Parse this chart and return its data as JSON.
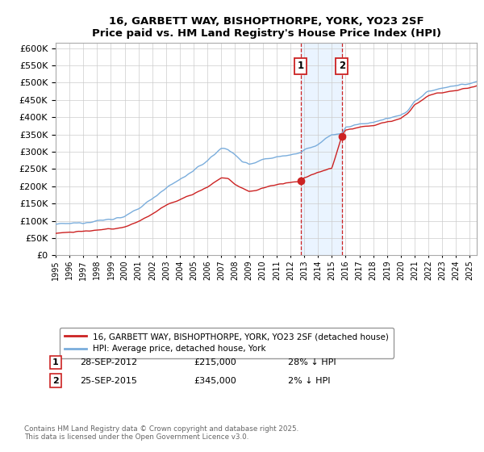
{
  "title": "16, GARBETT WAY, BISHOPTHORPE, YORK, YO23 2SF",
  "subtitle": "Price paid vs. HM Land Registry's House Price Index (HPI)",
  "ylabel_values": [
    0,
    50000,
    100000,
    150000,
    200000,
    250000,
    300000,
    350000,
    400000,
    450000,
    500000,
    550000,
    600000
  ],
  "ylim": [
    0,
    615000
  ],
  "xlim_start": 1995.0,
  "xlim_end": 2025.5,
  "sale1_date": 2012.74,
  "sale1_price": 215000,
  "sale2_date": 2015.73,
  "sale2_price": 345000,
  "hpi_color": "#7aaddc",
  "price_color": "#cc2222",
  "legend_label_price": "16, GARBETT WAY, BISHOPTHORPE, YORK, YO23 2SF (detached house)",
  "legend_label_hpi": "HPI: Average price, detached house, York",
  "annotation1_date": "28-SEP-2012",
  "annotation1_price": "£215,000",
  "annotation1_note": "28% ↓ HPI",
  "annotation2_date": "25-SEP-2015",
  "annotation2_price": "£345,000",
  "annotation2_note": "2% ↓ HPI",
  "copyright_text": "Contains HM Land Registry data © Crown copyright and database right 2025.\nThis data is licensed under the Open Government Licence v3.0.",
  "background_color": "#ffffff",
  "grid_color": "#cccccc",
  "shade_color": "#ddeeff"
}
